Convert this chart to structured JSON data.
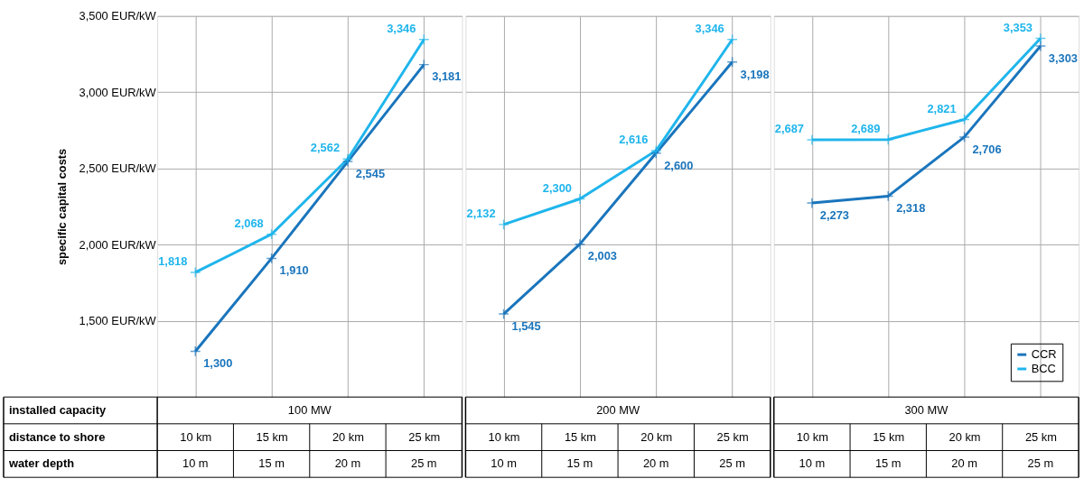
{
  "chart_data": [
    {
      "type": "line",
      "ylabel": "specific capital costs",
      "xlabel": "100 MW",
      "categories": [
        "10 km",
        "15 km",
        "20 km",
        "25 km"
      ],
      "series": [
        {
          "color": "#1a75bc",
          "values": [
            1300,
            1910,
            2545,
            3181
          ],
          "value_labels": [
            "1,300",
            "1,910",
            "2,545",
            "3,181"
          ]
        },
        {
          "color": "#1fb5ec",
          "values": [
            1818,
            2068,
            2562,
            3346
          ],
          "value_labels": [
            "1,818",
            "2,068",
            "2,562",
            "3,346"
          ]
        }
      ],
      "ylim": [
        1000,
        3500
      ],
      "yticks": [
        {
          "value": 1500,
          "label": "1,500  EUR/kW"
        },
        {
          "value": 2000,
          "label": "2,000  EUR/kW"
        },
        {
          "value": 2500,
          "label": "2,500  EUR/kW"
        },
        {
          "value": 3000,
          "label": "3,000  EUR/kW"
        },
        {
          "value": 3500,
          "label": "3,500  EUR/kW"
        }
      ],
      "grid": true,
      "marker": "cross",
      "annotations": [
        "installed capacity",
        "distance to shore",
        "water depth",
        "10 m",
        "15 m",
        "20 m",
        "25 m"
      ]
    },
    {
      "type": "line",
      "xlabel": "200 MW",
      "categories": [
        "10 km",
        "15 km",
        "20 km",
        "25 km"
      ],
      "series": [
        {
          "color": "#1a75bc",
          "values": [
            1545,
            2003,
            2600,
            3198
          ],
          "value_labels": [
            "1,545",
            "2,003",
            "2,600",
            "3,198"
          ]
        },
        {
          "color": "#1fb5ec",
          "values": [
            2132,
            2300,
            2616,
            3346
          ],
          "value_labels": [
            "2,132",
            "2,300",
            "2,616",
            "3,346"
          ]
        }
      ],
      "ylim": [
        1000,
        3500
      ],
      "yticks": [
        1500,
        2000,
        2500,
        3000,
        3500
      ],
      "tick_labels": "x",
      "grid": true,
      "marker": "cross",
      "annotations": [
        "10 m",
        "15 m",
        "20 m",
        "25 m"
      ]
    },
    {
      "type": "line",
      "xlabel": "300 MW",
      "categories": [
        "10 km",
        "15 km",
        "20 km",
        "25 km"
      ],
      "series": [
        {
          "name": "CCR",
          "color": "#1a75bc",
          "values": [
            2273,
            2318,
            2706,
            3303
          ],
          "value_labels": [
            "2,273",
            "2,318",
            "2,706",
            "3,303"
          ]
        },
        {
          "name": "BCC",
          "color": "#1fb5ec",
          "values": [
            2687,
            2689,
            2821,
            3353
          ],
          "value_labels": [
            "2,687",
            "2,689",
            "2,821",
            "3,353"
          ]
        }
      ],
      "ylim": [
        1000,
        3500
      ],
      "yticks": [
        1500,
        2000,
        2500,
        3000,
        3500
      ],
      "tick_labels": "x",
      "grid": true,
      "marker": "cross",
      "legend": "bottom right",
      "annotations": [
        "10 m",
        "15 m",
        "20 m",
        "25 m"
      ]
    }
  ]
}
